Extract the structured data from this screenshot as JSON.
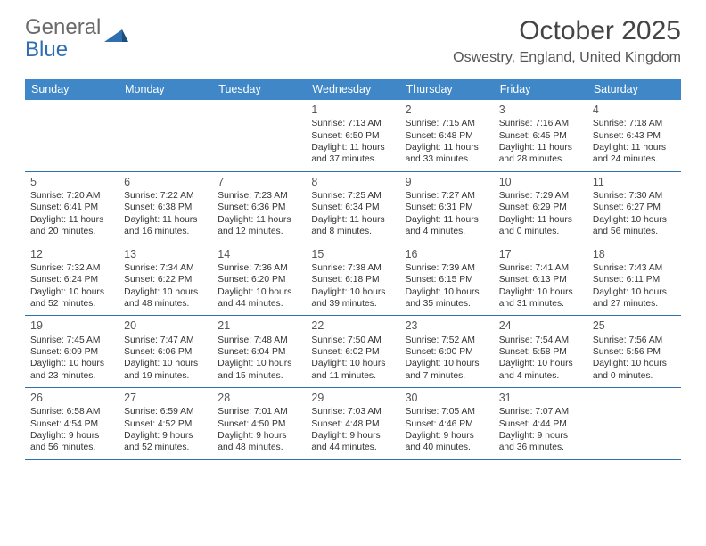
{
  "logo": {
    "word1": "General",
    "word2": "Blue"
  },
  "month_title": "October 2025",
  "location": "Oswestry, England, United Kingdom",
  "colors": {
    "header_bg": "#3f87c7",
    "header_text": "#ffffff",
    "rule": "#2f6fb0",
    "daynum": "#555555",
    "body_text": "#333333"
  },
  "weekdays": [
    "Sunday",
    "Monday",
    "Tuesday",
    "Wednesday",
    "Thursday",
    "Friday",
    "Saturday"
  ],
  "weeks": [
    [
      null,
      null,
      null,
      {
        "n": "1",
        "sr": "Sunrise: 7:13 AM",
        "ss": "Sunset: 6:50 PM",
        "d1": "Daylight: 11 hours",
        "d2": "and 37 minutes."
      },
      {
        "n": "2",
        "sr": "Sunrise: 7:15 AM",
        "ss": "Sunset: 6:48 PM",
        "d1": "Daylight: 11 hours",
        "d2": "and 33 minutes."
      },
      {
        "n": "3",
        "sr": "Sunrise: 7:16 AM",
        "ss": "Sunset: 6:45 PM",
        "d1": "Daylight: 11 hours",
        "d2": "and 28 minutes."
      },
      {
        "n": "4",
        "sr": "Sunrise: 7:18 AM",
        "ss": "Sunset: 6:43 PM",
        "d1": "Daylight: 11 hours",
        "d2": "and 24 minutes."
      }
    ],
    [
      {
        "n": "5",
        "sr": "Sunrise: 7:20 AM",
        "ss": "Sunset: 6:41 PM",
        "d1": "Daylight: 11 hours",
        "d2": "and 20 minutes."
      },
      {
        "n": "6",
        "sr": "Sunrise: 7:22 AM",
        "ss": "Sunset: 6:38 PM",
        "d1": "Daylight: 11 hours",
        "d2": "and 16 minutes."
      },
      {
        "n": "7",
        "sr": "Sunrise: 7:23 AM",
        "ss": "Sunset: 6:36 PM",
        "d1": "Daylight: 11 hours",
        "d2": "and 12 minutes."
      },
      {
        "n": "8",
        "sr": "Sunrise: 7:25 AM",
        "ss": "Sunset: 6:34 PM",
        "d1": "Daylight: 11 hours",
        "d2": "and 8 minutes."
      },
      {
        "n": "9",
        "sr": "Sunrise: 7:27 AM",
        "ss": "Sunset: 6:31 PM",
        "d1": "Daylight: 11 hours",
        "d2": "and 4 minutes."
      },
      {
        "n": "10",
        "sr": "Sunrise: 7:29 AM",
        "ss": "Sunset: 6:29 PM",
        "d1": "Daylight: 11 hours",
        "d2": "and 0 minutes."
      },
      {
        "n": "11",
        "sr": "Sunrise: 7:30 AM",
        "ss": "Sunset: 6:27 PM",
        "d1": "Daylight: 10 hours",
        "d2": "and 56 minutes."
      }
    ],
    [
      {
        "n": "12",
        "sr": "Sunrise: 7:32 AM",
        "ss": "Sunset: 6:24 PM",
        "d1": "Daylight: 10 hours",
        "d2": "and 52 minutes."
      },
      {
        "n": "13",
        "sr": "Sunrise: 7:34 AM",
        "ss": "Sunset: 6:22 PM",
        "d1": "Daylight: 10 hours",
        "d2": "and 48 minutes."
      },
      {
        "n": "14",
        "sr": "Sunrise: 7:36 AM",
        "ss": "Sunset: 6:20 PM",
        "d1": "Daylight: 10 hours",
        "d2": "and 44 minutes."
      },
      {
        "n": "15",
        "sr": "Sunrise: 7:38 AM",
        "ss": "Sunset: 6:18 PM",
        "d1": "Daylight: 10 hours",
        "d2": "and 39 minutes."
      },
      {
        "n": "16",
        "sr": "Sunrise: 7:39 AM",
        "ss": "Sunset: 6:15 PM",
        "d1": "Daylight: 10 hours",
        "d2": "and 35 minutes."
      },
      {
        "n": "17",
        "sr": "Sunrise: 7:41 AM",
        "ss": "Sunset: 6:13 PM",
        "d1": "Daylight: 10 hours",
        "d2": "and 31 minutes."
      },
      {
        "n": "18",
        "sr": "Sunrise: 7:43 AM",
        "ss": "Sunset: 6:11 PM",
        "d1": "Daylight: 10 hours",
        "d2": "and 27 minutes."
      }
    ],
    [
      {
        "n": "19",
        "sr": "Sunrise: 7:45 AM",
        "ss": "Sunset: 6:09 PM",
        "d1": "Daylight: 10 hours",
        "d2": "and 23 minutes."
      },
      {
        "n": "20",
        "sr": "Sunrise: 7:47 AM",
        "ss": "Sunset: 6:06 PM",
        "d1": "Daylight: 10 hours",
        "d2": "and 19 minutes."
      },
      {
        "n": "21",
        "sr": "Sunrise: 7:48 AM",
        "ss": "Sunset: 6:04 PM",
        "d1": "Daylight: 10 hours",
        "d2": "and 15 minutes."
      },
      {
        "n": "22",
        "sr": "Sunrise: 7:50 AM",
        "ss": "Sunset: 6:02 PM",
        "d1": "Daylight: 10 hours",
        "d2": "and 11 minutes."
      },
      {
        "n": "23",
        "sr": "Sunrise: 7:52 AM",
        "ss": "Sunset: 6:00 PM",
        "d1": "Daylight: 10 hours",
        "d2": "and 7 minutes."
      },
      {
        "n": "24",
        "sr": "Sunrise: 7:54 AM",
        "ss": "Sunset: 5:58 PM",
        "d1": "Daylight: 10 hours",
        "d2": "and 4 minutes."
      },
      {
        "n": "25",
        "sr": "Sunrise: 7:56 AM",
        "ss": "Sunset: 5:56 PM",
        "d1": "Daylight: 10 hours",
        "d2": "and 0 minutes."
      }
    ],
    [
      {
        "n": "26",
        "sr": "Sunrise: 6:58 AM",
        "ss": "Sunset: 4:54 PM",
        "d1": "Daylight: 9 hours",
        "d2": "and 56 minutes."
      },
      {
        "n": "27",
        "sr": "Sunrise: 6:59 AM",
        "ss": "Sunset: 4:52 PM",
        "d1": "Daylight: 9 hours",
        "d2": "and 52 minutes."
      },
      {
        "n": "28",
        "sr": "Sunrise: 7:01 AM",
        "ss": "Sunset: 4:50 PM",
        "d1": "Daylight: 9 hours",
        "d2": "and 48 minutes."
      },
      {
        "n": "29",
        "sr": "Sunrise: 7:03 AM",
        "ss": "Sunset: 4:48 PM",
        "d1": "Daylight: 9 hours",
        "d2": "and 44 minutes."
      },
      {
        "n": "30",
        "sr": "Sunrise: 7:05 AM",
        "ss": "Sunset: 4:46 PM",
        "d1": "Daylight: 9 hours",
        "d2": "and 40 minutes."
      },
      {
        "n": "31",
        "sr": "Sunrise: 7:07 AM",
        "ss": "Sunset: 4:44 PM",
        "d1": "Daylight: 9 hours",
        "d2": "and 36 minutes."
      },
      null
    ]
  ]
}
